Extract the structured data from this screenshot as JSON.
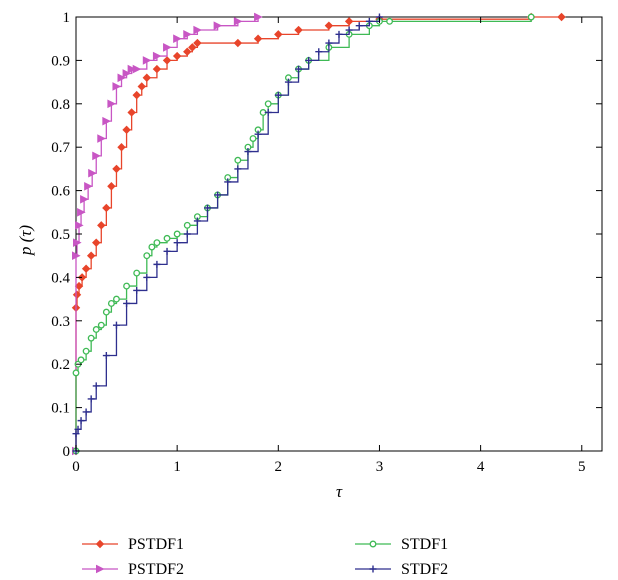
{
  "chart_data": {
    "type": "line",
    "title": "",
    "xlabel": "τ",
    "ylabel": "p (τ)",
    "xlim": [
      0,
      5.2
    ],
    "ylim": [
      0,
      1
    ],
    "xticks": [
      0,
      1,
      2,
      3,
      4,
      5
    ],
    "xtick_labels": [
      "0",
      "1",
      "2",
      "3",
      "4",
      "5"
    ],
    "yticks": [
      0,
      0.1,
      0.2,
      0.3,
      0.4,
      0.5,
      0.6,
      0.7,
      0.8,
      0.9,
      1
    ],
    "ytick_labels": [
      "0",
      "0.1",
      "0.2",
      "0.3",
      "0.4",
      "0.5",
      "0.6",
      "0.7",
      "0.8",
      "0.9",
      "1"
    ],
    "grid": false,
    "legend_position": "bottom",
    "series": [
      {
        "name": "PSTDF1",
        "color": "#e8452b",
        "marker": "diamond",
        "x": [
          0,
          0,
          0.01,
          0.03,
          0.06,
          0.1,
          0.15,
          0.2,
          0.25,
          0.3,
          0.35,
          0.4,
          0.45,
          0.5,
          0.55,
          0.6,
          0.65,
          0.7,
          0.8,
          0.9,
          1.0,
          1.1,
          1.15,
          1.2,
          1.6,
          1.8,
          2.0,
          2.2,
          2.5,
          2.7,
          3.0,
          4.5,
          4.8
        ],
        "y": [
          0,
          0.33,
          0.36,
          0.38,
          0.4,
          0.42,
          0.45,
          0.48,
          0.52,
          0.56,
          0.61,
          0.65,
          0.7,
          0.74,
          0.78,
          0.82,
          0.84,
          0.86,
          0.88,
          0.9,
          0.91,
          0.92,
          0.93,
          0.94,
          0.94,
          0.95,
          0.96,
          0.97,
          0.98,
          0.99,
          0.995,
          1.0,
          1.0
        ]
      },
      {
        "name": "PSTDF2",
        "color": "#c856c4",
        "marker": "triangle-right",
        "x": [
          0,
          0,
          0.01,
          0.03,
          0.05,
          0.08,
          0.12,
          0.16,
          0.2,
          0.25,
          0.3,
          0.35,
          0.4,
          0.45,
          0.5,
          0.55,
          0.6,
          0.7,
          0.8,
          0.9,
          1.0,
          1.1,
          1.2,
          1.4,
          1.6,
          1.8
        ],
        "y": [
          0,
          0.45,
          0.48,
          0.52,
          0.55,
          0.58,
          0.61,
          0.64,
          0.68,
          0.72,
          0.76,
          0.8,
          0.84,
          0.86,
          0.87,
          0.88,
          0.88,
          0.9,
          0.91,
          0.93,
          0.95,
          0.96,
          0.97,
          0.98,
          0.99,
          1.0
        ]
      },
      {
        "name": "STDF1",
        "color": "#3fba55",
        "marker": "circle",
        "x": [
          0,
          0,
          0.02,
          0.05,
          0.1,
          0.15,
          0.2,
          0.25,
          0.3,
          0.35,
          0.4,
          0.5,
          0.6,
          0.7,
          0.75,
          0.8,
          0.9,
          1.0,
          1.1,
          1.2,
          1.3,
          1.4,
          1.5,
          1.6,
          1.7,
          1.75,
          1.8,
          1.85,
          1.9,
          2.0,
          2.1,
          2.2,
          2.3,
          2.5,
          2.7,
          2.9,
          3.0,
          3.1,
          4.5
        ],
        "y": [
          0,
          0.18,
          0.2,
          0.21,
          0.23,
          0.26,
          0.28,
          0.29,
          0.32,
          0.34,
          0.35,
          0.38,
          0.41,
          0.45,
          0.47,
          0.48,
          0.49,
          0.5,
          0.52,
          0.54,
          0.56,
          0.59,
          0.63,
          0.67,
          0.7,
          0.72,
          0.74,
          0.78,
          0.8,
          0.82,
          0.86,
          0.88,
          0.9,
          0.93,
          0.96,
          0.98,
          0.99,
          0.99,
          1.0
        ]
      },
      {
        "name": "STDF2",
        "color": "#2e2f8e",
        "marker": "plus",
        "x": [
          0,
          0,
          0.02,
          0.05,
          0.1,
          0.15,
          0.2,
          0.3,
          0.4,
          0.5,
          0.6,
          0.7,
          0.8,
          0.9,
          1.0,
          1.1,
          1.2,
          1.3,
          1.4,
          1.5,
          1.6,
          1.7,
          1.8,
          1.9,
          2.0,
          2.1,
          2.2,
          2.3,
          2.4,
          2.5,
          2.6,
          2.7,
          2.8,
          2.9,
          3.0
        ],
        "y": [
          0,
          0.04,
          0.05,
          0.07,
          0.09,
          0.12,
          0.15,
          0.22,
          0.29,
          0.34,
          0.37,
          0.4,
          0.43,
          0.46,
          0.48,
          0.5,
          0.53,
          0.56,
          0.59,
          0.62,
          0.65,
          0.69,
          0.73,
          0.78,
          0.82,
          0.85,
          0.88,
          0.9,
          0.92,
          0.94,
          0.96,
          0.97,
          0.98,
          0.99,
          1.0
        ]
      }
    ]
  }
}
